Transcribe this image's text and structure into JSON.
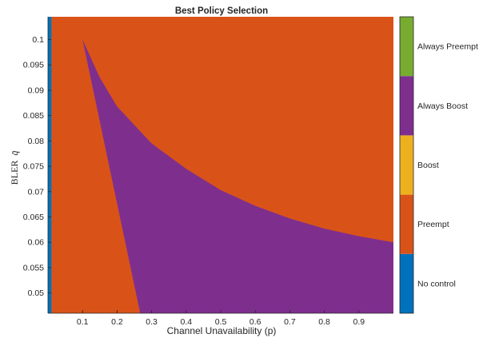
{
  "chart_data": {
    "type": "heatmap",
    "title": "Best Policy Selection",
    "xlabel": "Channel Unavailability (p)",
    "ylabel": "BLER",
    "ylabel_symbol": "q̄",
    "xlim": [
      0.0,
      1.0
    ],
    "ylim": [
      0.046,
      0.1045
    ],
    "xticks": [
      "0.1",
      "0.2",
      "0.3",
      "0.4",
      "0.5",
      "0.6",
      "0.7",
      "0.8",
      "0.9"
    ],
    "yticks": [
      "0.05",
      "0.055",
      "0.06",
      "0.065",
      "0.07",
      "0.075",
      "0.08",
      "0.085",
      "0.09",
      "0.095",
      "0.1"
    ],
    "no_control_strip_until_p": 0.01,
    "regions": [
      {
        "policy": "No control",
        "p_range": [
          0.0,
          0.01
        ]
      },
      {
        "policy": "Preempt",
        "description_of_fill": "background region"
      },
      {
        "policy": "Always Boost",
        "vertices": [
          [
            0.1,
            0.1
          ],
          [
            0.267,
            0.046
          ],
          [
            1.0,
            0.046
          ],
          [
            1.0,
            0.06
          ]
        ]
      }
    ],
    "boundary_points": {
      "upper_curve": [
        [
          0.1,
          0.1
        ],
        [
          0.15,
          0.0925
        ],
        [
          0.2,
          0.0868
        ],
        [
          0.3,
          0.0795
        ],
        [
          0.4,
          0.0745
        ],
        [
          0.5,
          0.0703
        ],
        [
          0.6,
          0.0672
        ],
        [
          0.7,
          0.0647
        ],
        [
          0.8,
          0.0627
        ],
        [
          0.9,
          0.0612
        ],
        [
          1.0,
          0.06
        ]
      ],
      "lower_line": [
        [
          0.1,
          0.1
        ],
        [
          0.267,
          0.046
        ]
      ]
    },
    "colorbar": {
      "categories": [
        "No control",
        "Preempt",
        "Boost",
        "Always Boost",
        "Always Preempt"
      ],
      "colors": [
        "#0072BD",
        "#D95319",
        "#EDB120",
        "#7E2F8E",
        "#77AC30"
      ]
    }
  }
}
